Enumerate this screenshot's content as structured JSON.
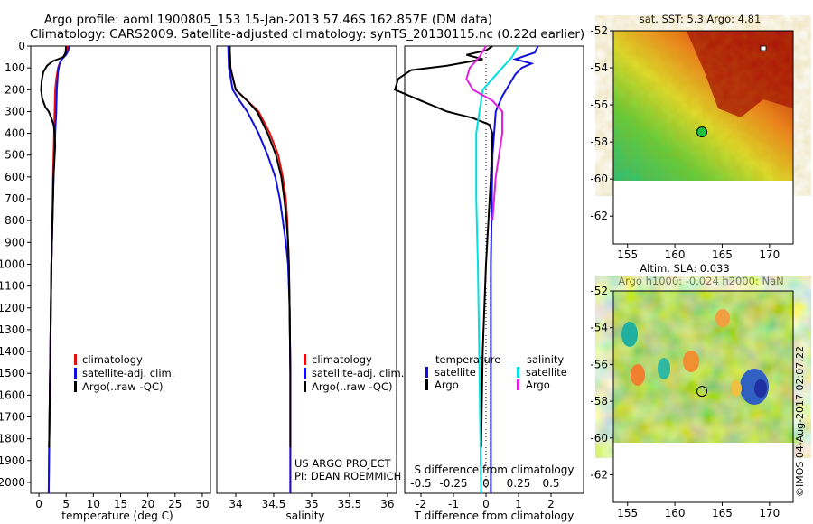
{
  "title": {
    "line1": "Argo profile: aoml 1900805_153 15-Jan-2013 57.46S 162.857E (DM data)",
    "line2": "Climatology: CARS2009. Satellite-adjusted climatology: synTS_20130115.nc (0.22d earlier)"
  },
  "colors": {
    "climatology": "#e01010",
    "satellite": "#1010e0",
    "argo": "#000000",
    "salinity_satellite": "#00e0e0",
    "salinity_argo": "#e020e0"
  },
  "side_text": "©IMOS 04-Aug-2017 02:07:22",
  "chart_data": [
    {
      "id": "temperature",
      "type": "line",
      "xlabel": "temperature (deg C)",
      "ylabel": "",
      "xlim": [
        -1.5,
        31.5
      ],
      "ylim": [
        2050,
        0
      ],
      "xticks": [
        0,
        5,
        10,
        15,
        20,
        25,
        30
      ],
      "yticks": [
        0,
        100,
        200,
        300,
        400,
        500,
        600,
        700,
        800,
        900,
        1000,
        1100,
        1200,
        1300,
        1400,
        1500,
        1600,
        1700,
        1800,
        1900,
        2000
      ],
      "legend": [
        "climatology",
        "satellite-adj. clim.",
        "Argo(..raw -QC)"
      ],
      "series": [
        {
          "name": "climatology",
          "color": "#e01010",
          "points": [
            [
              5.3,
              0
            ],
            [
              5.1,
              20
            ],
            [
              4.7,
              40
            ],
            [
              4.2,
              60
            ],
            [
              3.8,
              80
            ],
            [
              3.5,
              100
            ],
            [
              3.2,
              150
            ],
            [
              3.0,
              200
            ],
            [
              2.9,
              300
            ],
            [
              2.8,
              400
            ],
            [
              2.6,
              600
            ],
            [
              2.5,
              800
            ],
            [
              2.3,
              1000
            ],
            [
              2.2,
              1200
            ],
            [
              2.1,
              1400
            ],
            [
              2.0,
              1600
            ],
            [
              1.9,
              1800
            ],
            [
              1.8,
              2050
            ]
          ]
        },
        {
          "name": "satellite-adj. clim.",
          "color": "#1010e0",
          "points": [
            [
              5.6,
              0
            ],
            [
              5.4,
              20
            ],
            [
              5.0,
              40
            ],
            [
              4.2,
              60
            ],
            [
              3.8,
              80
            ],
            [
              3.5,
              120
            ],
            [
              3.3,
              200
            ],
            [
              3.2,
              300
            ],
            [
              3.0,
              400
            ],
            [
              2.7,
              600
            ],
            [
              2.5,
              800
            ],
            [
              2.3,
              1000
            ],
            [
              2.2,
              1200
            ],
            [
              2.1,
              1400
            ],
            [
              2.0,
              1600
            ],
            [
              1.9,
              1800
            ],
            [
              1.8,
              2050
            ]
          ]
        },
        {
          "name": "Argo(..raw -QC)",
          "color": "#000000",
          "points": [
            [
              5.0,
              0
            ],
            [
              4.9,
              30
            ],
            [
              4.5,
              50
            ],
            [
              3.5,
              60
            ],
            [
              2.5,
              70
            ],
            [
              1.5,
              90
            ],
            [
              0.8,
              120
            ],
            [
              0.5,
              160
            ],
            [
              0.4,
              200
            ],
            [
              0.6,
              240
            ],
            [
              1.2,
              280
            ],
            [
              1.8,
              300
            ],
            [
              2.3,
              330
            ],
            [
              2.7,
              360
            ],
            [
              2.9,
              400
            ],
            [
              3.0,
              460
            ],
            [
              2.9,
              500
            ],
            [
              2.7,
              600
            ],
            [
              2.5,
              800
            ],
            [
              2.3,
              1000
            ],
            [
              2.2,
              1200
            ],
            [
              2.1,
              1400
            ],
            [
              2.0,
              1600
            ],
            [
              1.9,
              1800
            ],
            [
              1.85,
              1840
            ]
          ]
        }
      ]
    },
    {
      "id": "salinity",
      "type": "line",
      "xlabel": "salinity",
      "ylabel": "",
      "xlim": [
        33.75,
        36.12
      ],
      "ylim": [
        2050,
        0
      ],
      "xticks": [
        34,
        34.5,
        35,
        35.5,
        36
      ],
      "legend": [
        "climatology",
        "satellite-adj. clim.",
        "Argo(..raw -QC)"
      ],
      "annotation": [
        "US ARGO PROJECT",
        "PI: DEAN ROEMMICH"
      ],
      "series": [
        {
          "name": "climatology",
          "color": "#e01010",
          "points": [
            [
              33.92,
              0
            ],
            [
              33.93,
              100
            ],
            [
              34.0,
              200
            ],
            [
              34.15,
              250
            ],
            [
              34.3,
              300
            ],
            [
              34.45,
              400
            ],
            [
              34.56,
              500
            ],
            [
              34.62,
              600
            ],
            [
              34.66,
              700
            ],
            [
              34.68,
              800
            ],
            [
              34.69,
              900
            ],
            [
              34.7,
              1000
            ],
            [
              34.71,
              1200
            ],
            [
              34.72,
              1500
            ],
            [
              34.72,
              1800
            ],
            [
              34.72,
              2050
            ]
          ]
        },
        {
          "name": "satellite-adj. clim.",
          "color": "#1010e0",
          "points": [
            [
              33.9,
              0
            ],
            [
              33.91,
              100
            ],
            [
              33.96,
              200
            ],
            [
              34.05,
              250
            ],
            [
              34.15,
              300
            ],
            [
              34.3,
              400
            ],
            [
              34.42,
              500
            ],
            [
              34.52,
              600
            ],
            [
              34.58,
              700
            ],
            [
              34.62,
              800
            ],
            [
              34.66,
              900
            ],
            [
              34.69,
              1000
            ],
            [
              34.71,
              1200
            ],
            [
              34.72,
              1500
            ],
            [
              34.72,
              1800
            ],
            [
              34.72,
              2050
            ]
          ]
        },
        {
          "name": "Argo(..raw -QC)",
          "color": "#000000",
          "points": [
            [
              33.92,
              0
            ],
            [
              33.93,
              100
            ],
            [
              34.0,
              200
            ],
            [
              34.15,
              250
            ],
            [
              34.28,
              300
            ],
            [
              34.42,
              400
            ],
            [
              34.53,
              500
            ],
            [
              34.6,
              600
            ],
            [
              34.64,
              700
            ],
            [
              34.67,
              800
            ],
            [
              34.69,
              900
            ],
            [
              34.7,
              1000
            ],
            [
              34.71,
              1200
            ],
            [
              34.72,
              1500
            ],
            [
              34.72,
              1800
            ],
            [
              34.72,
              1840
            ]
          ]
        }
      ]
    },
    {
      "id": "difference",
      "type": "line",
      "xlabel": "T difference from climatology",
      "xlabel2": "S difference from climatology",
      "xlim": [
        -2.5,
        3.0
      ],
      "ylim": [
        2050,
        0
      ],
      "xticks": [
        -2,
        -1,
        0,
        1,
        2
      ],
      "xticks2": [
        "-0.5",
        "-0.25",
        "0",
        "0.25",
        "0.5"
      ],
      "legend_titles": [
        "temperature",
        "salinity"
      ],
      "legend": [
        "satellite",
        "Argo",
        "satellite",
        "Argo"
      ],
      "series": [
        {
          "name": "temperature satellite",
          "color": "#1010e0",
          "points": [
            [
              1.6,
              0
            ],
            [
              1.5,
              30
            ],
            [
              0.9,
              60
            ],
            [
              1.4,
              80
            ],
            [
              1.1,
              100
            ],
            [
              0.9,
              130
            ],
            [
              0.7,
              180
            ],
            [
              0.5,
              230
            ],
            [
              0.3,
              300
            ],
            [
              0.2,
              500
            ],
            [
              0.15,
              1000
            ],
            [
              0.15,
              1500
            ],
            [
              0.15,
              2050
            ]
          ]
        },
        {
          "name": "temperature Argo",
          "color": "#000000",
          "points": [
            [
              0.2,
              0
            ],
            [
              0.0,
              20
            ],
            [
              -0.6,
              40
            ],
            [
              -0.1,
              60
            ],
            [
              -1.2,
              90
            ],
            [
              -2.3,
              110
            ],
            [
              -2.7,
              150
            ],
            [
              -2.8,
              200
            ],
            [
              -2.0,
              250
            ],
            [
              -1.2,
              300
            ],
            [
              -0.4,
              330
            ],
            [
              0.1,
              360
            ],
            [
              0.2,
              400
            ],
            [
              0.15,
              600
            ],
            [
              0.0,
              1000
            ],
            [
              -0.1,
              1400
            ],
            [
              -0.15,
              1840
            ]
          ]
        },
        {
          "name": "salinity satellite",
          "color": "#00e0e0",
          "points": [
            [
              1.0,
              0
            ],
            [
              0.8,
              50
            ],
            [
              0.5,
              100
            ],
            [
              0.2,
              150
            ],
            [
              -0.1,
              200
            ],
            [
              -0.2,
              300
            ],
            [
              -0.3,
              400
            ],
            [
              -0.3,
              700
            ],
            [
              -0.25,
              1000
            ],
            [
              -0.2,
              1500
            ],
            [
              -0.15,
              2050
            ]
          ]
        },
        {
          "name": "salinity Argo",
          "color": "#e020e0",
          "points": [
            [
              0.0,
              0
            ],
            [
              -0.2,
              50
            ],
            [
              -0.5,
              100
            ],
            [
              -0.6,
              150
            ],
            [
              -0.4,
              200
            ],
            [
              0.2,
              250
            ],
            [
              0.5,
              300
            ],
            [
              0.5,
              400
            ],
            [
              0.3,
              600
            ],
            [
              0.2,
              800
            ]
          ]
        }
      ]
    }
  ],
  "maps": [
    {
      "id": "sst-map",
      "title": "sat. SST: 5.3 Argo: 4.81",
      "yticks": [
        "-52",
        "-54",
        "-56",
        "-58",
        "-60",
        "-62"
      ],
      "xticks": [
        "155",
        "160",
        "165",
        "170"
      ],
      "xlim": [
        153.5,
        172.5
      ],
      "ylim": [
        -52,
        -63.5
      ],
      "float_lon": 162.857,
      "float_lat": -57.46
    },
    {
      "id": "sla-map",
      "title1": "Altim. SLA: 0.033",
      "title2": "Argo h1000: -0.024 h2000: NaN",
      "yticks": [
        "-52",
        "-54",
        "-56",
        "-58",
        "-60",
        "-62"
      ],
      "xticks": [
        "155",
        "160",
        "165",
        "170"
      ],
      "xlim": [
        153.5,
        172.5
      ],
      "ylim": [
        -52,
        -63.5
      ],
      "float_lon": 162.857,
      "float_lat": -57.46
    }
  ]
}
